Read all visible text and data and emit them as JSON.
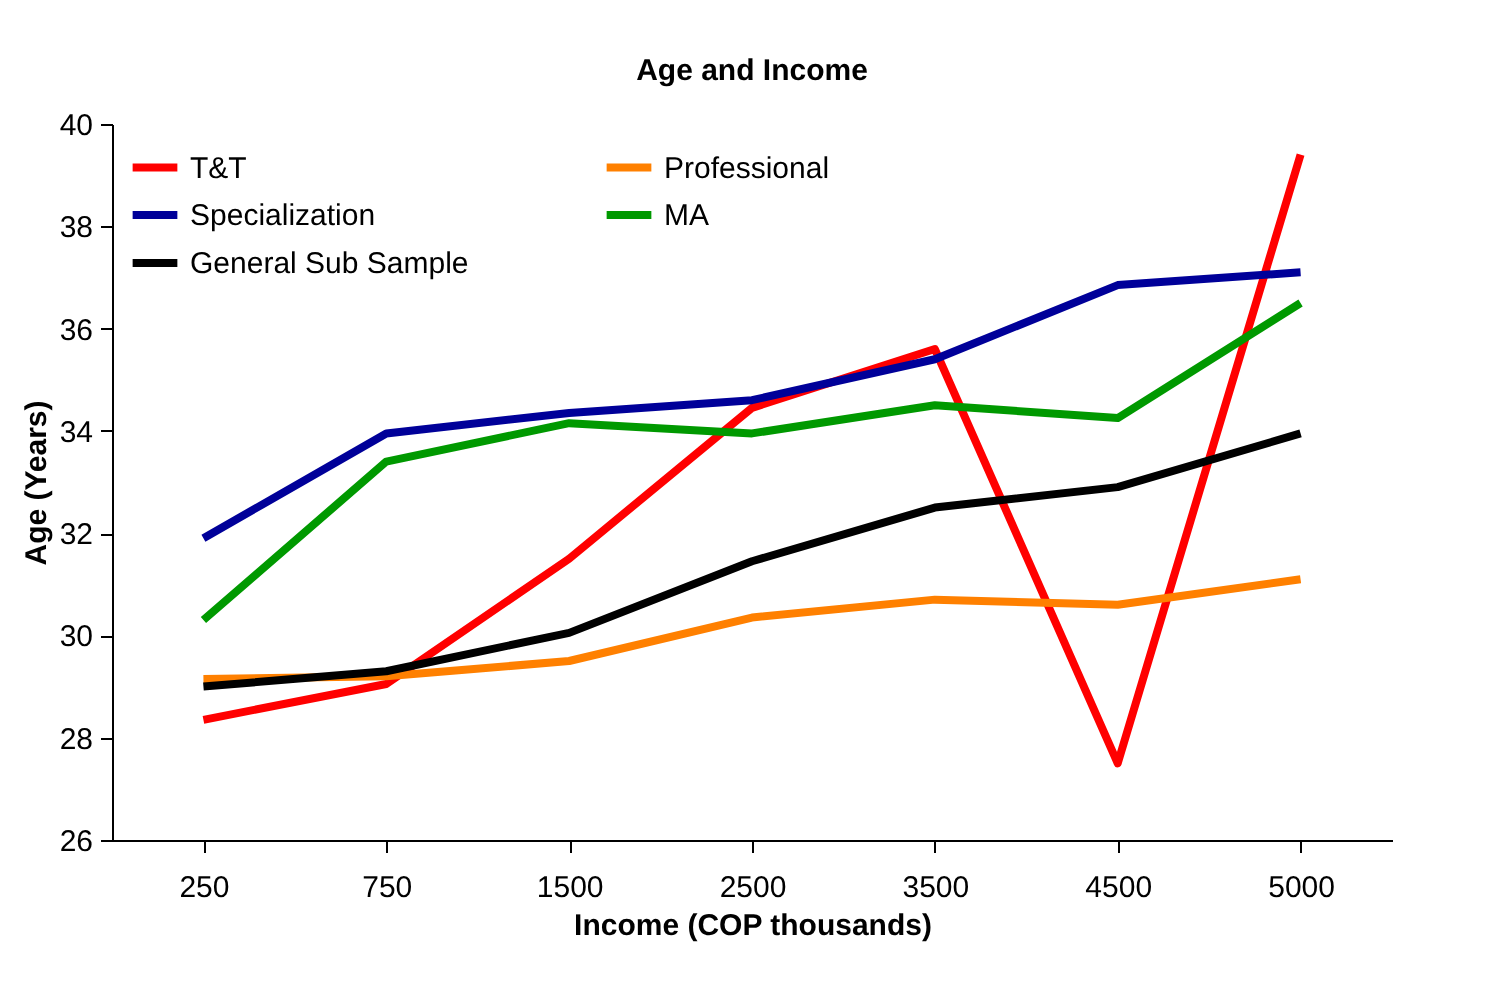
{
  "chart_data": {
    "type": "line",
    "title": "Age and Income",
    "xlabel": "Income (COP thousands)",
    "ylabel": "Age (Years)",
    "categories": [
      "250",
      "750",
      "1500",
      "2500",
      "3500",
      "4500",
      "5000"
    ],
    "series": [
      {
        "name": "T&T",
        "color": "#ff0000",
        "values": [
          28.35,
          29.05,
          31.5,
          34.45,
          35.6,
          27.5,
          39.4
        ]
      },
      {
        "name": "Professional",
        "color": "#ff8000",
        "values": [
          29.15,
          29.2,
          29.5,
          30.35,
          30.7,
          30.6,
          31.1
        ]
      },
      {
        "name": "Specialization",
        "color": "#000099",
        "values": [
          31.9,
          33.95,
          34.35,
          34.6,
          35.4,
          36.85,
          37.1
        ]
      },
      {
        "name": "MA",
        "color": "#009900",
        "values": [
          30.3,
          33.4,
          34.15,
          33.95,
          34.5,
          34.25,
          36.5
        ]
      },
      {
        "name": "General Sub Sample",
        "color": "#000000",
        "values": [
          29.0,
          29.3,
          30.05,
          31.45,
          32.5,
          32.9,
          33.95
        ]
      }
    ],
    "ylim": [
      26,
      40
    ],
    "yticks": [
      26,
      28,
      30,
      32,
      34,
      36,
      38,
      40
    ],
    "grid": false,
    "legend": "top left",
    "marker": "none",
    "line_style": "solid"
  }
}
